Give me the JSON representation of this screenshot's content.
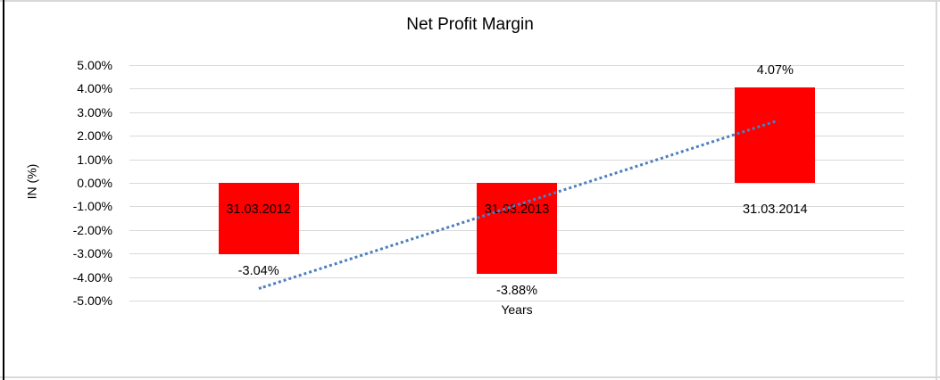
{
  "chart_data": {
    "type": "bar",
    "title": "Net Profit Margin",
    "xlabel": "Years",
    "ylabel": "IN (%)",
    "categories": [
      "31.03.2012",
      "31.03.2013",
      "31.03.2014"
    ],
    "values": [
      -3.04,
      -3.88,
      4.07
    ],
    "data_labels": [
      "-3.04%",
      "-3.88%",
      "4.07%"
    ],
    "ytick_values": [
      5,
      4,
      3,
      2,
      1,
      0,
      -1,
      -2,
      -3,
      -4,
      -5
    ],
    "ytick_labels": [
      "5.00%",
      "4.00%",
      "3.00%",
      "2.00%",
      "1.00%",
      "0.00%",
      "-1.00%",
      "-2.00%",
      "-3.00%",
      "-4.00%",
      "-5.00%"
    ],
    "ylim": [
      -5,
      5
    ],
    "grid": true,
    "legend": "none",
    "bar_color": "#ff0000",
    "trendline": {
      "type": "linear",
      "style": "dotted",
      "color": "#4c7fc0",
      "start_value": -4.5,
      "end_value": 2.6
    }
  },
  "colors": {
    "bar": "#ff0000",
    "trendline": "#4c7fc0",
    "gridline": "#d9d9d9",
    "frame_border": "#d8d8d8",
    "left_border": "#000000",
    "text": "#000000"
  }
}
